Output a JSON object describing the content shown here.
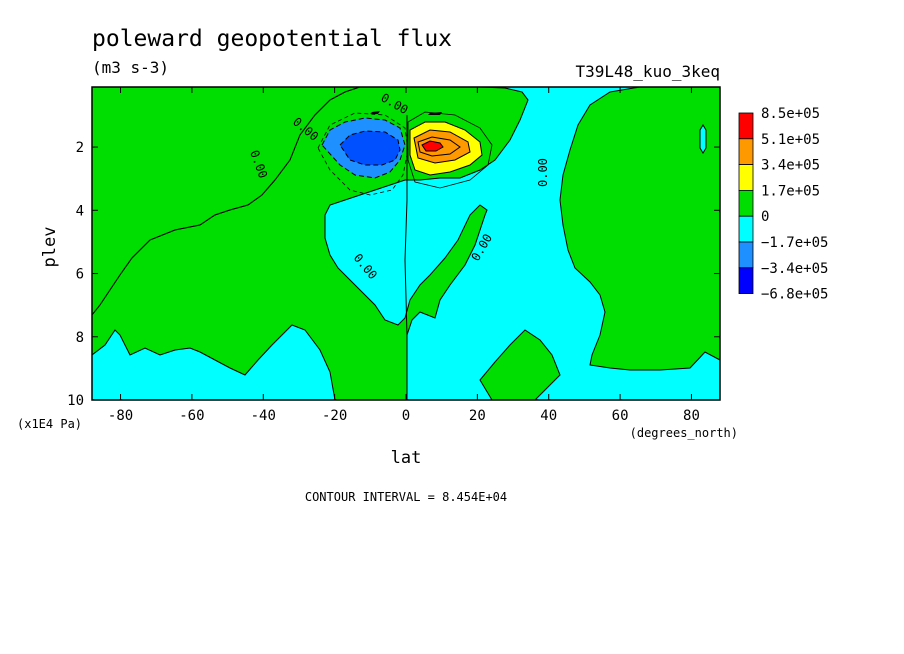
{
  "chart_data": {
    "type": "heatmap",
    "title": "poleward geopotential flux",
    "units": "(m3 s-3)",
    "run_label": "T39L48_kuo_3keq",
    "xlabel": "lat",
    "x_units": "(degrees_north)",
    "ylabel": "plev",
    "y_units": "(x1E4 Pa)",
    "xlim": [
      -88,
      88
    ],
    "ylim": [
      0.1,
      10
    ],
    "y_inverted": true,
    "x_ticks": [
      "-80",
      "-60",
      "-40",
      "-20",
      "0",
      "20",
      "40",
      "60",
      "80"
    ],
    "x_tick_values": [
      -80,
      -60,
      -40,
      -20,
      0,
      20,
      40,
      60,
      80
    ],
    "y_ticks": [
      "2",
      "4",
      "6",
      "8",
      "10"
    ],
    "y_tick_values": [
      2,
      4,
      6,
      8,
      10
    ],
    "contour_interval_text": "CONTOUR INTERVAL = 8.454E+04",
    "contour_labels": [
      "0.00",
      "0.00",
      "0.00",
      "0.00",
      "0.00",
      "0.00",
      "0.00"
    ],
    "legend": {
      "labels": [
        "8.5e+05",
        "5.1e+05",
        "3.4e+05",
        "1.7e+05",
        "0",
        "−1.7e+05",
        "−3.4e+05",
        "−6.8e+05"
      ],
      "colors": [
        "#ff0000",
        "#ff9900",
        "#ffff00",
        "#00dd00",
        "#00ffff",
        "#1e90ff",
        "#0000ff"
      ]
    },
    "colors": {
      "negative_weak": "#00ffff",
      "positive_weak": "#00dd00",
      "neg_2": "#1e90ff",
      "neg_3": "#0050ff",
      "pos_2": "#ffff00",
      "pos_3": "#ff9900",
      "pos_4": "#ff0000"
    },
    "features": [
      {
        "sign": "negative",
        "lat": -7,
        "plev": 2.0,
        "peak": -680000.0
      },
      {
        "sign": "positive",
        "lat": 6,
        "plev": 2.0,
        "peak": 850000.0
      }
    ]
  }
}
